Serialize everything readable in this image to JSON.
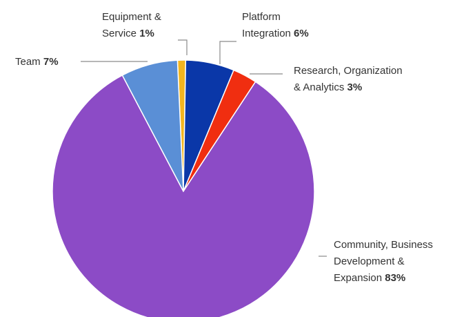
{
  "chart_data": {
    "type": "pie",
    "title": "",
    "slices": [
      {
        "lines": [
          "Equipment &",
          "Service"
        ],
        "value": 1,
        "pct_label": "1%",
        "color": "#f2b51f"
      },
      {
        "lines": [
          "Platform",
          "Integration"
        ],
        "value": 6,
        "pct_label": "6%",
        "color": "#0a37a8"
      },
      {
        "lines": [
          "Research, Organization",
          "& Analytics"
        ],
        "value": 3,
        "pct_label": "3%",
        "color": "#f02e10"
      },
      {
        "lines": [
          "Community, Business",
          "Development &",
          "Expansion"
        ],
        "value": 83,
        "pct_label": "83%",
        "color": "#8c4bc6"
      },
      {
        "lines": [
          "Team"
        ],
        "value": 7,
        "pct_label": "7%",
        "color": "#5a8fd6"
      }
    ]
  }
}
